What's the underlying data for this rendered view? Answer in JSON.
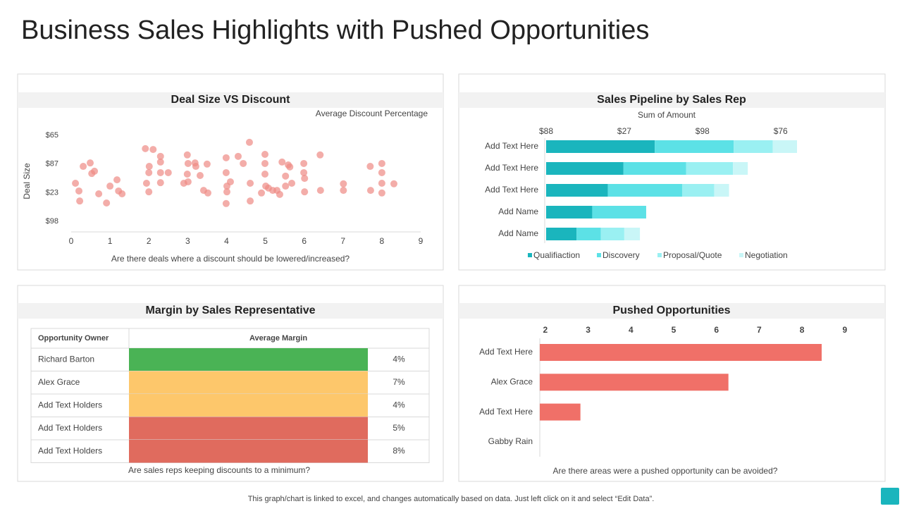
{
  "title": "Business Sales Highlights with Pushed Opportunities",
  "footer": "This graph/chart is linked to excel,  and changes automatically based on data. Just left click on it and select “Edit Data”.",
  "chart_data": [
    {
      "type": "scatter",
      "title": "Deal Size VS Discount",
      "subtitle": "Average Discount Percentage",
      "y_label": "Deal Size",
      "x_label": "Are there deals where a discount should be lowered/increased?",
      "color": "#ee8a85",
      "x": [
        0.11,
        0.2,
        0.22,
        0.31,
        0.49,
        0.53,
        0.6,
        0.71,
        0.91,
        1.0,
        1.18,
        1.22,
        1.31,
        1.91,
        1.94,
        2.0,
        2.0,
        2.01,
        2.11,
        2.3,
        2.3,
        2.3,
        2.3,
        2.5,
        2.9,
        2.99,
        3.01,
        2.99,
        3.01,
        3.19,
        3.21,
        3.32,
        3.41,
        3.52,
        3.5,
        3.99,
        3.99,
        4.01,
        4.01,
        3.99,
        4.1,
        4.3,
        4.43,
        4.59,
        4.61,
        4.61,
        4.9,
        4.99,
        4.99,
        4.99,
        5.01,
        5.08,
        5.19,
        5.3,
        5.37,
        5.43,
        5.52,
        5.52,
        5.59,
        5.63,
        5.68,
        5.99,
        5.99,
        6.01,
        6.01,
        6.41,
        6.42,
        7.01,
        7.01,
        7.7,
        7.71,
        8.0,
        8.0,
        8.0,
        8.0,
        8.31
      ],
      "values": [
        1.33,
        1.06,
        0.71,
        1.92,
        2.04,
        1.67,
        1.75,
        0.96,
        0.64,
        1.23,
        1.45,
        1.06,
        0.96,
        2.54,
        1.33,
        1.03,
        1.7,
        1.92,
        2.51,
        2.27,
        2.07,
        1.7,
        1.35,
        1.7,
        1.33,
        2.32,
        2.02,
        1.65,
        1.38,
        2.04,
        1.92,
        1.6,
        1.08,
        0.99,
        2.0,
        2.22,
        1.7,
        1.23,
        1.03,
        0.62,
        1.38,
        2.27,
        2.02,
        2.76,
        1.33,
        0.71,
        0.99,
        2.34,
        2.02,
        1.65,
        1.23,
        1.16,
        1.08,
        1.08,
        0.94,
        2.07,
        1.58,
        1.23,
        1.97,
        1.9,
        1.33,
        2.02,
        1.7,
        1.5,
        1.03,
        2.32,
        1.08,
        1.31,
        1.08,
        1.92,
        1.08,
        2.02,
        1.7,
        1.33,
        0.99,
        1.31
      ],
      "xlim": [
        0,
        9
      ],
      "xticks": [
        0,
        1,
        2,
        3,
        4,
        5,
        6,
        7,
        8,
        9
      ],
      "ylim": [
        -0.37,
        3.3
      ],
      "yticks": [
        {
          "value": 0,
          "label": "$98"
        },
        {
          "value": 1,
          "label": "$23"
        },
        {
          "value": 2,
          "label": "$87"
        },
        {
          "value": 3,
          "label": "$65"
        }
      ]
    },
    {
      "type": "stacked_bar",
      "title": "Sales Pipeline by Sales Rep",
      "subtitle": "Sum of Amount",
      "categories": [
        "Add Text Here",
        "Add Text Here",
        "Add Text Here",
        "Add Name",
        "Add Name"
      ],
      "series": [
        {
          "name": "Qualifiaction",
          "color": "#1ab5bd",
          "values": [
            1.39,
            0.99,
            0.79,
            0.59,
            0.39
          ]
        },
        {
          "name": "Discovery",
          "color": "#5ce1e6",
          "values": [
            1.01,
            0.8,
            0.95,
            0.69,
            0.31
          ]
        },
        {
          "name": "Proposal/Quote",
          "color": "#9af0f2",
          "values": [
            0.5,
            0.6,
            0.41,
            0,
            0.3
          ]
        },
        {
          "name": "Negotiation",
          "color": "#c9f6f7",
          "values": [
            0.31,
            0.19,
            0.19,
            0,
            0.2
          ]
        }
      ],
      "xlim": [
        0,
        3.3
      ],
      "xticks": [
        {
          "value": 0,
          "label": "$88"
        },
        {
          "value": 1,
          "label": "$27"
        },
        {
          "value": 2,
          "label": "$98"
        },
        {
          "value": 3,
          "label": "$76"
        }
      ]
    },
    {
      "type": "bar",
      "title": "Pushed Opportunities",
      "x_label": "Are there areas were a pushed opportunity can be avoided?",
      "categories": [
        "Add Text Here",
        "Alex Grace",
        "Add Text Here",
        "Gabby Rain"
      ],
      "values": [
        8.46,
        6.28,
        2.82,
        null
      ],
      "color": "#f07068",
      "xlim": [
        1.87,
        9.3
      ],
      "xticks": [
        2,
        3,
        4,
        5,
        6,
        7,
        8,
        9
      ]
    }
  ],
  "margin_table": {
    "title": "Margin by Sales Representative",
    "caption": "Are sales reps keeping discounts to a minimum?",
    "header": [
      "Opportunity Owner",
      "Average Margin"
    ],
    "rows": [
      [
        "Richard Barton",
        "4%"
      ],
      [
        "Alex Grace",
        "7%"
      ],
      [
        "Add Text Holders",
        "4%"
      ],
      [
        "Add Text Holders",
        "5%"
      ],
      [
        "Add Text Holders",
        "8%"
      ]
    ],
    "colors": [
      "#4ab355",
      "#fdc76b",
      "#fdc76b",
      "#e06b5e",
      "#e06b5e"
    ]
  }
}
